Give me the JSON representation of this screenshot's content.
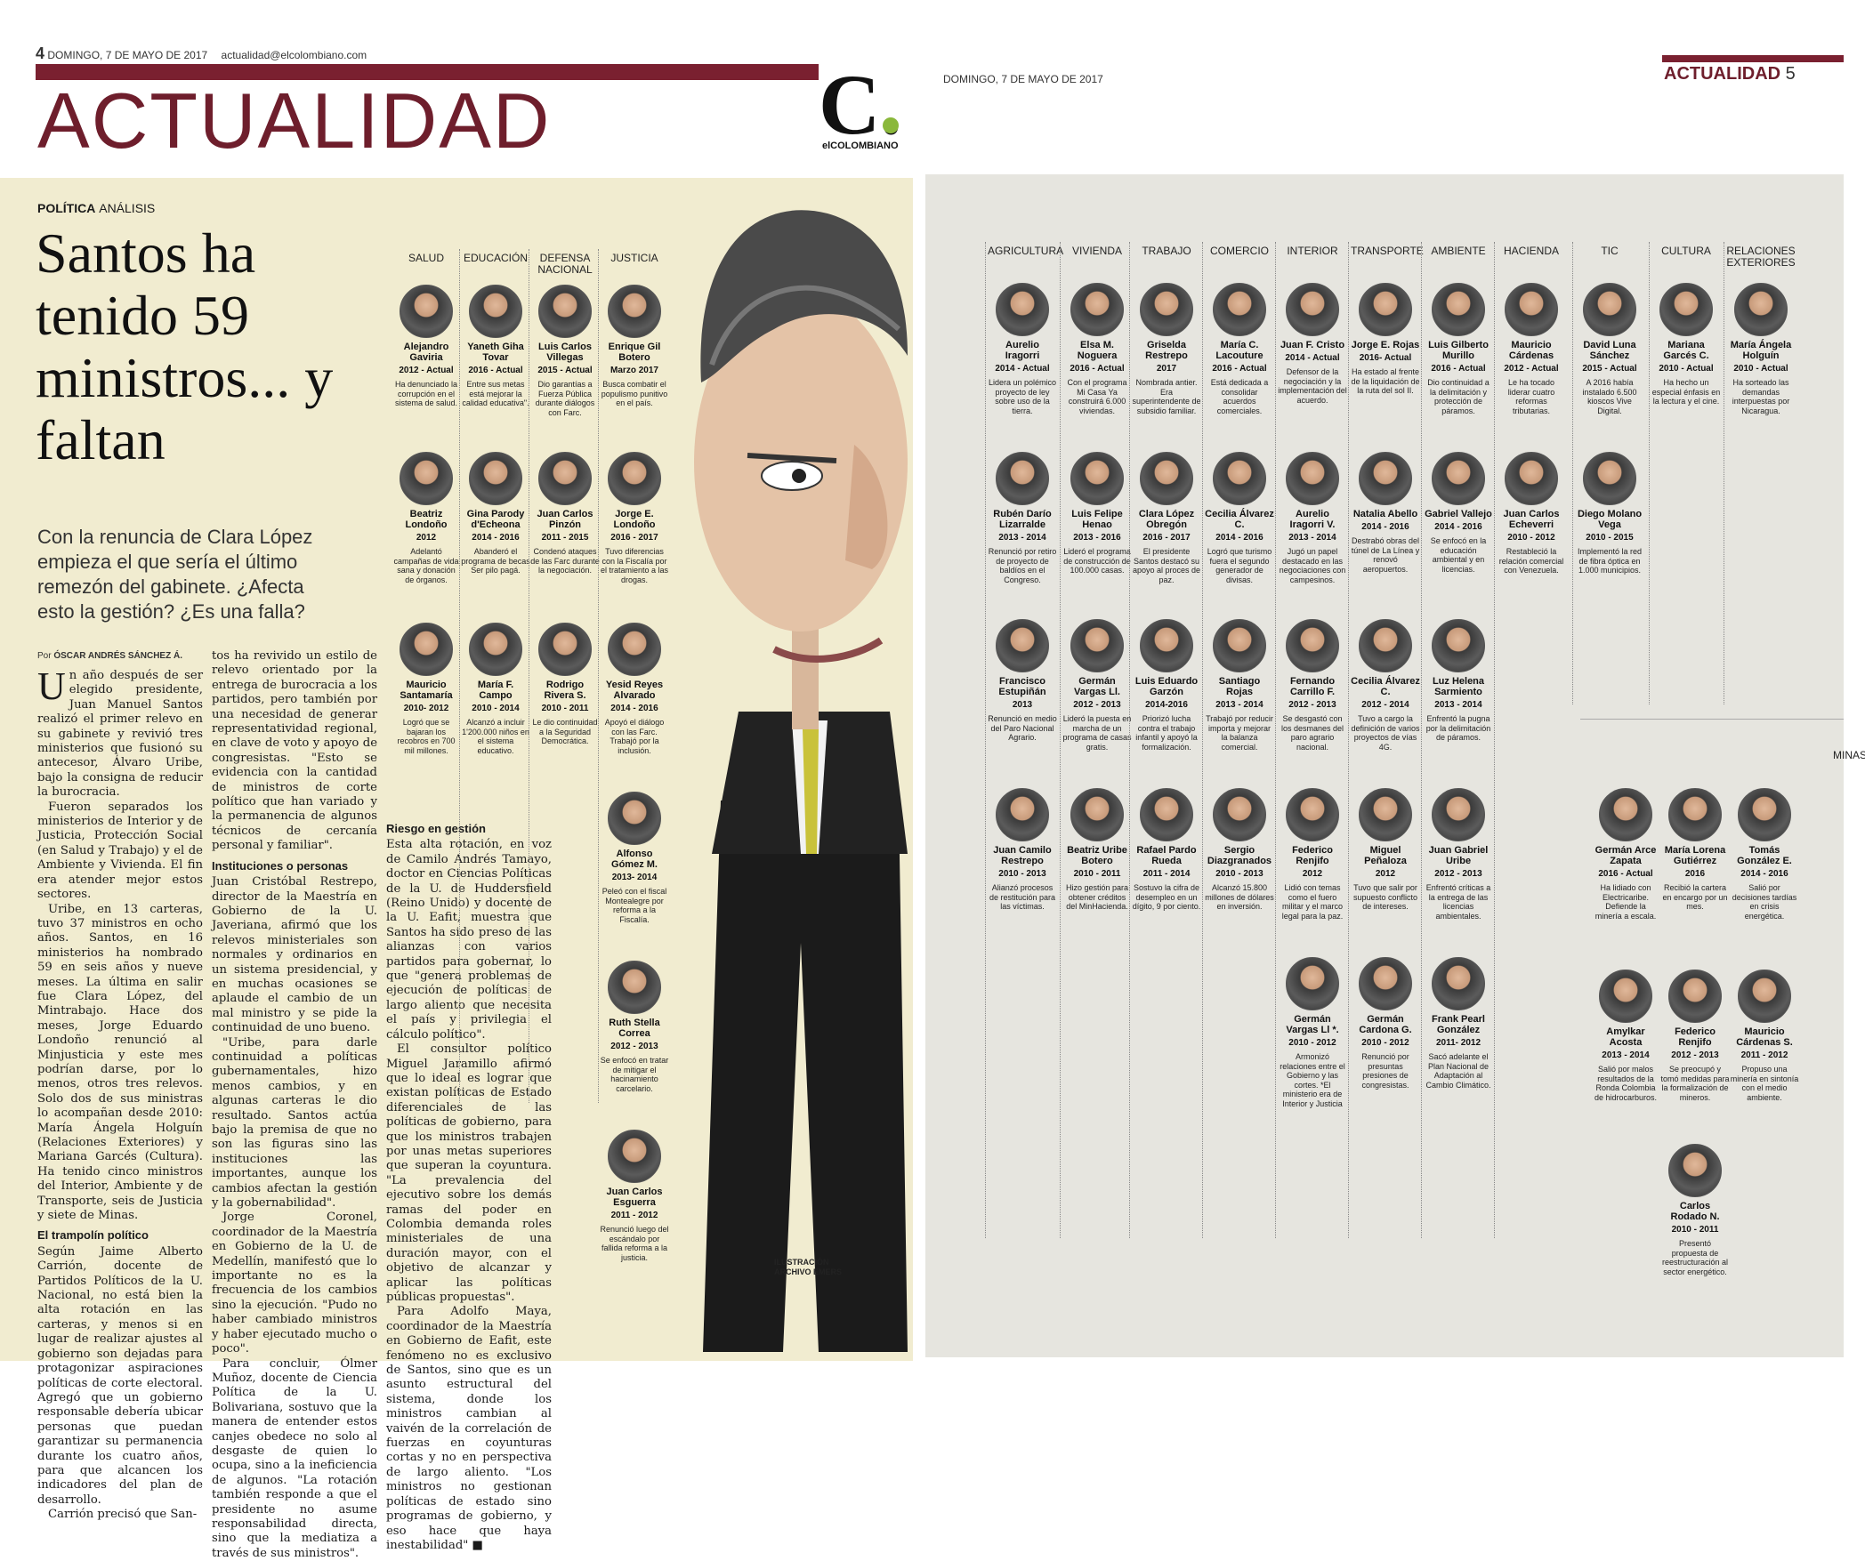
{
  "left_page": {
    "page_number": "4",
    "date": "DOMINGO, 7 DE MAYO DE 2017",
    "email": "actualidad@elcolombiano.com",
    "section_title": "ACTUALIDAD",
    "logo_letter": "C.",
    "logo_text": "elCOLOMBIANO",
    "kicker_bold": "POLÍTICA",
    "kicker_light": "ANÁLISIS",
    "headline": "Santos ha tenido 59 ministros... y faltan",
    "deck": "Con la renuncia de Clara López empieza el que sería el último remezón del gabinete. ¿Afecta esto la gestión? ¿Es una falla?",
    "byline_prefix": "Por",
    "byline_author": "ÓSCAR ANDRÉS SÁNCHEZ Á.",
    "col1": {
      "drop_cap": "U",
      "p1": "n año después de ser elegido presidente, Juan Manuel Santos realizó el primer relevo en su gabinete y revivió tres ministerios que fusionó su antecesor, Álvaro Uribe, bajo la consigna de reducir la burocracia.",
      "p2": "Fueron separados los ministerios de Interior y de Justicia, Protección Social (en Salud y Trabajo) y el de Ambiente y Vivienda. El fin era atender mejor estos sectores.",
      "p3": "Uribe, en 13 carteras, tuvo 37 ministros en ocho años. Santos, en 16 ministerios ha nombrado 59 en seis años y nueve meses. La última en salir fue Clara López, del Mintrabajo. Hace dos meses, Jorge Eduardo Londoño renunció al Minjusticia y este mes podrían darse, por lo menos, otros tres relevos. Solo dos de sus ministras lo acompañan desde 2010: María Ángela Holguín (Relaciones Exteriores) y Mariana Garcés (Cultura). Ha tenido cinco ministros del Interior, Ambiente y de Transporte, seis de Justicia y siete de Minas.",
      "h1": "El trampolín político",
      "p4": "Según Jaime Alberto Carrión, docente de Partidos Políticos de la U. Nacional, no está bien la alta rotación en las carteras, y menos si en lugar de realizar ajustes al gobierno son dejadas para protagonizar aspiraciones políticas de corte electoral. Agregó que un gobierno responsable debería ubicar personas que puedan garantizar su permanencia durante los cuatro años, para que alcancen los indicadores del plan de desarrollo.",
      "p5": "Carrión precisó que San-"
    },
    "col2": {
      "p1": "tos ha revivido un estilo de relevo orientado por la entrega de burocracia a los partidos, pero también por una necesidad de generar representatividad regional, en clave de voto y apoyo de congresistas. \"Esto se evidencia con la cantidad de ministros de corte político que han variado y la permanencia de algunos técnicos de cercanía personal y familiar\".",
      "h1": "Instituciones o personas",
      "p2": "Juan Cristóbal Restrepo, director de la Maestría en Gobierno de la U. Javeriana, afirmó que los relevos ministeriales son normales y ordinarios en un sistema presidencial, y en muchas ocasiones se aplaude el cambio de un mal ministro y se pide la continuidad de uno bueno.",
      "p3": "\"Uribe, para darle continuidad a políticas gubernamentales, hizo menos cambios, y en algunas carteras le dio resultado. Santos actúa bajo la premisa de que no son las figuras sino las instituciones las importantes, aunque los cambios afectan la gestión y la gobernabilidad\".",
      "p4": "Jorge Coronel, coordinador de la Maestría en Gobierno de la U. de Medellín, manifestó que lo importante no es la frecuencia de los cambios sino la ejecución. \"Pudo no haber cambiado ministros y haber ejecutado mucho o poco\".",
      "p5": "Para concluir, Ólmer Muñoz, docente de Ciencia Política de la U. Bolivariana, sostuvo que la manera de entender estos canjes obedece no solo al desgaste de quien lo ocupa, sino a la ineficiencia de algunos. \"La rotación también responde a que el presidente no asume responsabilidad directa, sino que la mediatiza a través de sus ministros\"."
    },
    "col3": {
      "h1": "Riesgo en gestión",
      "p1": "Esta alta rotación, en voz de Camilo Andrés Tamayo, doctor en Ciencias Políticas de la U. de Huddersfield (Reino Unido) y docente de la U. Eafit, muestra que Santos ha sido preso de las alianzas con varios partidos para gobernar, lo que \"genera problemas de ejecución de políticas de largo aliento que necesita el país y privilegia el cálculo político\".",
      "p2": "El consultor político Miguel Jaramillo afirmó que lo ideal es lograr que existan políticas de Estado diferenciales de las políticas de gobierno, para que los ministros trabajen por unas metas superiores que superan la coyuntura. \"La prevalencia del ejecutivo sobre los demás ramas del poder en Colombia demanda roles ministeriales de una duración mayor, con el objetivo de alcanzar y aplicar las políticas públicas propuestas\".",
      "p3": "Para Adolfo Maya, coordinador de la Maestría en Gobierno de Eafit, este fenómeno no es exclusivo de Santos, sino que es un asunto estructural del sistema, donde los ministros cambian al vaivén de la correlación de fuerzas en coyunturas cortas y no en perspectiva de largo aliento. \"Los ministros no gestionan políticas de estado sino programas de gobierno, y eso hace que haya inestabilidad\" ■"
    },
    "illustration_credit": "ILUSTRACIÓN\nARCHIVO EMERS"
  },
  "right_page": {
    "date": "DOMINGO, 7 DE MAYO DE 2017",
    "section_title": "ACTUALIDAD",
    "page_number": "5",
    "minas_title": "MINAS"
  },
  "ministries": [
    {
      "title": "SALUD",
      "ministers": [
        {
          "name": "Alejandro Gaviria",
          "years": "2012 - Actual",
          "note": "Ha denunciado la corrupción en el sistema de salud."
        },
        {
          "name": "Beatriz Londoño",
          "years": "2012",
          "note": "Adelantó campañas de vida sana y donación de órganos."
        },
        {
          "name": "Mauricio Santamaría",
          "years": "2010- 2012",
          "note": "Logró que se bajaran los recobros en 700 mil millones."
        }
      ]
    },
    {
      "title": "EDUCACIÓN",
      "ministers": [
        {
          "name": "Yaneth Giha Tovar",
          "years": "2016 - Actual",
          "note": "Entre sus metas está mejorar la calidad educativa\"."
        },
        {
          "name": "Gina Parody d'Echeona",
          "years": "2014 - 2016",
          "note": "Abanderó el programa de becas Ser pilo pagá."
        },
        {
          "name": "María F. Campo",
          "years": "2010 - 2014",
          "note": "Alcanzó a incluir 1'200.000 niños en el sistema educativo."
        }
      ]
    },
    {
      "title": "DEFENSA NACIONAL",
      "ministers": [
        {
          "name": "Luis Carlos Villegas",
          "years": "2015 - Actual",
          "note": "Dio garantías a Fuerza Pública durante diálogos con Farc."
        },
        {
          "name": "Juan Carlos Pinzón",
          "years": "2011 - 2015",
          "note": "Condenó ataques de las Farc durante la negociación."
        },
        {
          "name": "Rodrigo Rivera S.",
          "years": "2010 - 2011",
          "note": "Le dio continuidad a la Seguridad Democrática."
        }
      ]
    },
    {
      "title": "JUSTICIA",
      "ministers": [
        {
          "name": "Enrique Gil Botero",
          "years": "Marzo 2017",
          "note": "Busca combatir el populismo punitivo en el país."
        },
        {
          "name": "Jorge E. Londoño",
          "years": "2016 - 2017",
          "note": "Tuvo diferencias con la Fiscalía por el tratamiento a las drogas."
        },
        {
          "name": "Yesid Reyes Alvarado",
          "years": "2014 - 2016",
          "note": "Apoyó el diálogo con las Farc. Trabajó por la inclusión."
        },
        {
          "name": "Alfonso Gómez M.",
          "years": "2013- 2014",
          "note": "Peleó con el fiscal Montealegre por reforma a la Fiscalía."
        },
        {
          "name": "Ruth Stella Correa",
          "years": "2012 - 2013",
          "note": "Se enfocó en tratar de mitigar el hacinamiento carcelario."
        },
        {
          "name": "Juan Carlos Esguerra",
          "years": "2011 - 2012",
          "note": "Renunció luego del escándalo por fallida reforma a la justicia."
        }
      ]
    },
    {
      "title": "AGRICULTURA",
      "ministers": [
        {
          "name": "Aurelio Iragorri",
          "years": "2014 - Actual",
          "note": "Lidera un polémico proyecto de ley sobre uso de la tierra."
        },
        {
          "name": "Rubén Darío Lizarralde",
          "years": "2013 - 2014",
          "note": "Renunció por retiro de proyecto de baldíos en el Congreso."
        },
        {
          "name": "Francisco Estupiñán",
          "years": "2013",
          "note": "Renunció en medio del Paro Nacional Agrario."
        },
        {
          "name": "Juan Camilo Restrepo",
          "years": "2010 - 2013",
          "note": "Alianzó procesos de restitución para las víctimas."
        }
      ]
    },
    {
      "title": "VIVIENDA",
      "ministers": [
        {
          "name": "Elsa M. Noguera",
          "years": "2016 - Actual",
          "note": "Con el programa Mi Casa Ya construirá 6.000 viviendas."
        },
        {
          "name": "Luis Felipe Henao",
          "years": "2013 - 2016",
          "note": "Lideró el programa de construcción de 100.000 casas."
        },
        {
          "name": "Germán Vargas Ll.",
          "years": "2012 - 2013",
          "note": "Lideró la puesta en marcha de un programa de casas gratis."
        },
        {
          "name": "Beatriz Uribe Botero",
          "years": "2010 - 2011",
          "note": "Hizo gestión para obtener créditos del MinHacienda."
        }
      ]
    },
    {
      "title": "TRABAJO",
      "ministers": [
        {
          "name": "Griselda Restrepo",
          "years": "2017",
          "note": "Nombrada antier. Era superintendente de subsidio familiar."
        },
        {
          "name": "Clara López Obregón",
          "years": "2016 - 2017",
          "note": "El presidente Santos destacó su apoyo al proces de paz."
        },
        {
          "name": "Luis Eduardo Garzón",
          "years": "2014-2016",
          "note": "Priorizó lucha contra el trabajo infantil y apoyó la formalización."
        },
        {
          "name": "Rafael Pardo Rueda",
          "years": "2011 - 2014",
          "note": "Sostuvo la cifra de desempleo en un dígito, 9 por ciento."
        }
      ]
    },
    {
      "title": "COMERCIO",
      "ministers": [
        {
          "name": "María C. Lacouture",
          "years": "2016 - Actual",
          "note": "Está dedicada a consolidar acuerdos comerciales."
        },
        {
          "name": "Cecilia Álvarez C.",
          "years": "2014 - 2016",
          "note": "Logró que turismo fuera el segundo generador de divisas."
        },
        {
          "name": "Santiago Rojas",
          "years": "2013 - 2014",
          "note": "Trabajó por reducir importa y mejorar la balanza comercial."
        },
        {
          "name": "Sergio Diazgranados",
          "years": "2010 - 2013",
          "note": "Alcanzó 15.800 millones de dólares en inversión."
        }
      ]
    },
    {
      "title": "INTERIOR",
      "ministers": [
        {
          "name": "Juan F. Cristo",
          "years": "2014 - Actual",
          "note": "Defensor de la negociación y la implementación del acuerdo."
        },
        {
          "name": "Aurelio Iragorri V.",
          "years": "2013 - 2014",
          "note": "Jugó un papel destacado en las negociaciones con campesinos."
        },
        {
          "name": "Fernando Carrillo F.",
          "years": "2012 - 2013",
          "note": "Se desgastó con los desmanes del paro agrario nacional."
        },
        {
          "name": "Federico Renjifo",
          "years": "2012",
          "note": "Lidió con temas como el fuero militar y el marco legal para la paz."
        },
        {
          "name": "Germán Vargas Ll *.",
          "years": "2010 - 2012",
          "note": "Armonizó relaciones entre el Gobierno y las cortes. *El ministerio era de Interior y Justicia"
        }
      ]
    },
    {
      "title": "TRANSPORTE",
      "ministers": [
        {
          "name": "Jorge E. Rojas",
          "years": "2016- Actual",
          "note": "Ha estado al frente de la liquidación de la ruta del sol II."
        },
        {
          "name": "Natalia Abello",
          "years": "2014 - 2016",
          "note": "Destrabó obras del túnel de La Línea y renovó aeropuertos."
        },
        {
          "name": "Cecilia Álvarez C.",
          "years": "2012 - 2014",
          "note": "Tuvo a cargo la definición de varios proyectos de vías 4G."
        },
        {
          "name": "Miguel Peñaloza",
          "years": "2012",
          "note": "Tuvo que salir por supuesto conflicto de intereses."
        },
        {
          "name": "Germán Cardona G.",
          "years": "2010 - 2012",
          "note": "Renunció por presuntas presiones de congresistas."
        }
      ]
    },
    {
      "title": "AMBIENTE",
      "ministers": [
        {
          "name": "Luis Gilberto Murillo",
          "years": "2016 - Actual",
          "note": "Dio continuidad a la delimitación y protección de páramos."
        },
        {
          "name": "Gabriel Vallejo",
          "years": "2014 - 2016",
          "note": "Se enfocó en la educación ambiental y en licencias."
        },
        {
          "name": "Luz Helena Sarmiento",
          "years": "2013 - 2014",
          "note": "Enfrentó la pugna por la delimitación de páramos."
        },
        {
          "name": "Juan Gabriel Uribe",
          "years": "2012 - 2013",
          "note": "Enfrentó críticas a la entrega de las licencias ambientales."
        },
        {
          "name": "Frank Pearl González",
          "years": "2011- 2012",
          "note": "Sacó adelante el Plan Nacional de Adaptación al Cambio Climático."
        }
      ]
    },
    {
      "title": "HACIENDA",
      "ministers": [
        {
          "name": "Mauricio Cárdenas",
          "years": "2012 - Actual",
          "note": "Le ha tocado liderar cuatro reformas tributarias."
        },
        {
          "name": "Juan Carlos Echeverri",
          "years": "2010 - 2012",
          "note": "Restableció la relación comercial con Venezuela."
        }
      ]
    },
    {
      "title": "TIC",
      "ministers": [
        {
          "name": "David Luna Sánchez",
          "years": "2015 - Actual",
          "note": "A 2016 había instalado 6.500 kioscos Vive Digital."
        },
        {
          "name": "Diego Molano Vega",
          "years": "2010 - 2015",
          "note": "Implementó la red de fibra óptica en 1.000 municipios."
        }
      ]
    },
    {
      "title": "CULTURA",
      "ministers": [
        {
          "name": "Mariana Garcés C.",
          "years": "2010 - Actual",
          "note": "Ha hecho un especial énfasis en la lectura y el cine."
        }
      ]
    },
    {
      "title": "RELACIONES EXTERIORES",
      "ministers": [
        {
          "name": "María Ángela Holguín",
          "years": "2010 - Actual",
          "note": "Ha sorteado las demandas interpuestas por Nicaragua."
        }
      ]
    }
  ],
  "minas": [
    {
      "name": "Germán Arce Zapata",
      "years": "2016 - Actual",
      "note": "Ha lidiado con Electricaribe. Defiende la minería a escala."
    },
    {
      "name": "María Lorena Gutiérrez",
      "years": "2016",
      "note": "Recibió la cartera en encargo por un mes."
    },
    {
      "name": "Tomás González E.",
      "years": "2014 - 2016",
      "note": "Salió por decisiones tardías en crisis energética."
    },
    {
      "name": "Amylkar Acosta",
      "years": "2013 - 2014",
      "note": "Salió por malos resultados de la Ronda Colombia de hidrocarburos."
    },
    {
      "name": "Federico Renjifo",
      "years": "2012 - 2013",
      "note": "Se preocupó y tomó medidas para la formalización de mineros."
    },
    {
      "name": "Mauricio Cárdenas S.",
      "years": "2011 - 2012",
      "note": "Propuso una minería en sintonía con el medio ambiente."
    },
    {
      "name": "Carlos Rodado N.",
      "years": "2010 - 2011",
      "note": "Presentó propuesta de reestructuración al sector energético."
    }
  ],
  "colors": {
    "accent": "#6e1e2c",
    "bar": "#7a2030",
    "paper": "#f1ecd0",
    "grey_panel": "#e6e5df",
    "logo_dot": "#8ab83b"
  }
}
